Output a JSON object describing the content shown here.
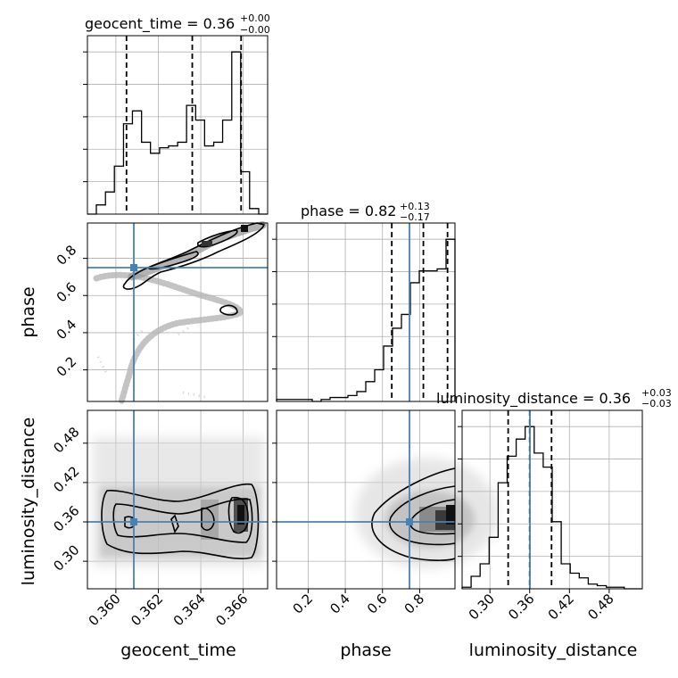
{
  "chart_data": {
    "type": "corner",
    "truth_color": "#4682b4",
    "grid": true,
    "parameters": [
      {
        "key": "geocent_time",
        "label": "geocent_time",
        "range": [
          0.35866,
          0.36715
        ],
        "ticks": [
          "0.360",
          "0.362",
          "0.364",
          "0.366"
        ],
        "tick_values": [
          0.36,
          0.362,
          0.364,
          0.366
        ],
        "truth": 0.3605,
        "title_value": "0.36",
        "title_plus": "+0.00",
        "title_minus": "−0.00",
        "quantiles": [
          0.3605,
          0.3636,
          0.3659
        ],
        "hist_bins": [
          0.35866,
          0.35908,
          0.35951,
          0.35993,
          0.36036,
          0.36078,
          0.36121,
          0.36163,
          0.36206,
          0.36248,
          0.36291,
          0.36333,
          0.36376,
          0.36418,
          0.36461,
          0.36503,
          0.36546,
          0.36588,
          0.3663,
          0.36673,
          0.36715
        ],
        "hist_counts": [
          0,
          5,
          12,
          26,
          49,
          56,
          39,
          33,
          36,
          37,
          39,
          59,
          51,
          37,
          39,
          51,
          88,
          23,
          3,
          0
        ]
      },
      {
        "key": "phase",
        "label": "phase",
        "range": [
          0.03,
          0.99
        ],
        "ticks": [
          "0.2",
          "0.4",
          "0.6",
          "0.8"
        ],
        "tick_values": [
          0.2,
          0.4,
          0.6,
          0.8
        ],
        "truth": 0.75,
        "title_value": "0.82",
        "title_plus": "+0.13",
        "title_minus": "−0.17",
        "quantiles": [
          0.65,
          0.82,
          0.95
        ],
        "hist_bins": [
          0.03,
          0.078,
          0.126,
          0.174,
          0.222,
          0.27,
          0.318,
          0.366,
          0.414,
          0.462,
          0.51,
          0.558,
          0.606,
          0.654,
          0.702,
          0.75,
          0.798,
          0.846,
          0.894,
          0.942,
          0.99
        ],
        "hist_counts": [
          1,
          1,
          1,
          1,
          0,
          1,
          2,
          2,
          3,
          5,
          10,
          16,
          28,
          37,
          44,
          60,
          66,
          66,
          67,
          82
        ]
      },
      {
        "key": "luminosity_distance",
        "label": "luminosity_distance",
        "range": [
          0.258,
          0.53
        ],
        "ticks": [
          "0.30",
          "0.36",
          "0.42",
          "0.48"
        ],
        "tick_values": [
          0.3,
          0.36,
          0.42,
          0.48
        ],
        "truth": 0.36,
        "title_value": "0.36",
        "title_plus": "+0.03",
        "title_minus": "−0.03",
        "quantiles": [
          0.3275,
          0.36,
          0.393
        ],
        "hist_bins": [
          0.258,
          0.2716,
          0.2852,
          0.2988,
          0.3124,
          0.326,
          0.3396,
          0.3532,
          0.3668,
          0.3804,
          0.394,
          0.4076,
          0.4212,
          0.4348,
          0.4484,
          0.462,
          0.4756,
          0.4892,
          0.5028,
          0.5164,
          0.53
        ],
        "hist_counts": [
          1,
          8,
          16,
          33,
          68,
          85,
          96,
          104,
          87,
          78,
          43,
          16,
          10,
          7,
          3,
          2,
          1,
          1,
          0,
          0
        ]
      }
    ]
  }
}
